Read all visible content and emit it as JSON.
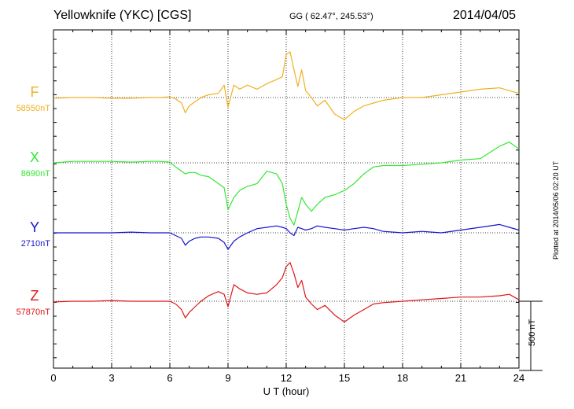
{
  "header": {
    "station": "Yellowknife (YKC)  [CGS]",
    "coords": "GG ( 62.47°, 245.53°)",
    "date": "2014/04/05"
  },
  "footer": {
    "plotted": "Plotted at 2014/05/06 02:20 UT"
  },
  "colors": {
    "F": "#f0b020",
    "X": "#33e833",
    "Y": "#1515d0",
    "Z": "#e01515"
  },
  "chart_data": {
    "type": "line",
    "xlabel": "U T (hour)",
    "xlim": [
      0,
      24
    ],
    "x_ticks": [
      "0",
      "3",
      "6",
      "9",
      "12",
      "15",
      "18",
      "21",
      "24"
    ],
    "scale_bar_label": "500 nT",
    "scale_bar_nT": 500,
    "x": [
      0,
      1,
      2,
      3,
      4,
      5,
      5.5,
      6,
      6.3,
      6.6,
      6.8,
      7,
      7.3,
      7.6,
      8,
      8.5,
      8.8,
      9,
      9.3,
      9.6,
      10,
      10.5,
      11,
      11.5,
      11.8,
      12,
      12.2,
      12.4,
      12.6,
      12.8,
      13,
      13.3,
      13.6,
      14,
      14.5,
      15,
      15.5,
      16,
      16.5,
      17,
      18,
      19,
      20,
      21,
      22,
      23,
      23.5,
      24
    ],
    "series": [
      {
        "name": "F",
        "baseline_label": "58550nT",
        "values": [
          -5,
          0,
          0,
          -5,
          -5,
          0,
          0,
          5,
          -10,
          -40,
          -110,
          -60,
          -30,
          0,
          20,
          30,
          90,
          -70,
          90,
          60,
          90,
          60,
          100,
          130,
          150,
          310,
          330,
          200,
          80,
          200,
          50,
          0,
          -60,
          -20,
          -120,
          -160,
          -100,
          -60,
          -40,
          -20,
          0,
          0,
          20,
          40,
          60,
          70,
          50,
          30
        ]
      },
      {
        "name": "X",
        "baseline_label": "8690nT",
        "values": [
          0,
          10,
          10,
          10,
          5,
          10,
          10,
          5,
          -30,
          -60,
          -80,
          -70,
          -70,
          -90,
          -100,
          -150,
          -180,
          -340,
          -250,
          -200,
          -170,
          -150,
          -60,
          -80,
          -150,
          -300,
          -400,
          -450,
          -350,
          -250,
          -300,
          -350,
          -300,
          -250,
          -230,
          -200,
          -150,
          -80,
          -30,
          -20,
          -20,
          -10,
          0,
          20,
          30,
          120,
          150,
          100
        ]
      },
      {
        "name": "Y",
        "baseline_label": "2710nT",
        "values": [
          0,
          0,
          0,
          0,
          5,
          0,
          0,
          0,
          -20,
          -40,
          -90,
          -60,
          -40,
          -30,
          -30,
          -40,
          -70,
          -120,
          -60,
          -30,
          0,
          30,
          40,
          50,
          40,
          30,
          0,
          -20,
          40,
          30,
          20,
          30,
          50,
          40,
          30,
          20,
          30,
          40,
          30,
          10,
          0,
          10,
          0,
          20,
          40,
          60,
          40,
          20
        ]
      },
      {
        "name": "Z",
        "baseline_label": "57870nT",
        "values": [
          -5,
          0,
          0,
          5,
          0,
          0,
          0,
          0,
          -20,
          -60,
          -120,
          -80,
          -40,
          0,
          40,
          70,
          50,
          -40,
          120,
          90,
          60,
          50,
          60,
          120,
          170,
          250,
          280,
          200,
          100,
          150,
          30,
          -20,
          -60,
          -30,
          -100,
          -150,
          -100,
          -60,
          -20,
          -10,
          0,
          10,
          20,
          30,
          30,
          40,
          50,
          10
        ]
      }
    ]
  }
}
